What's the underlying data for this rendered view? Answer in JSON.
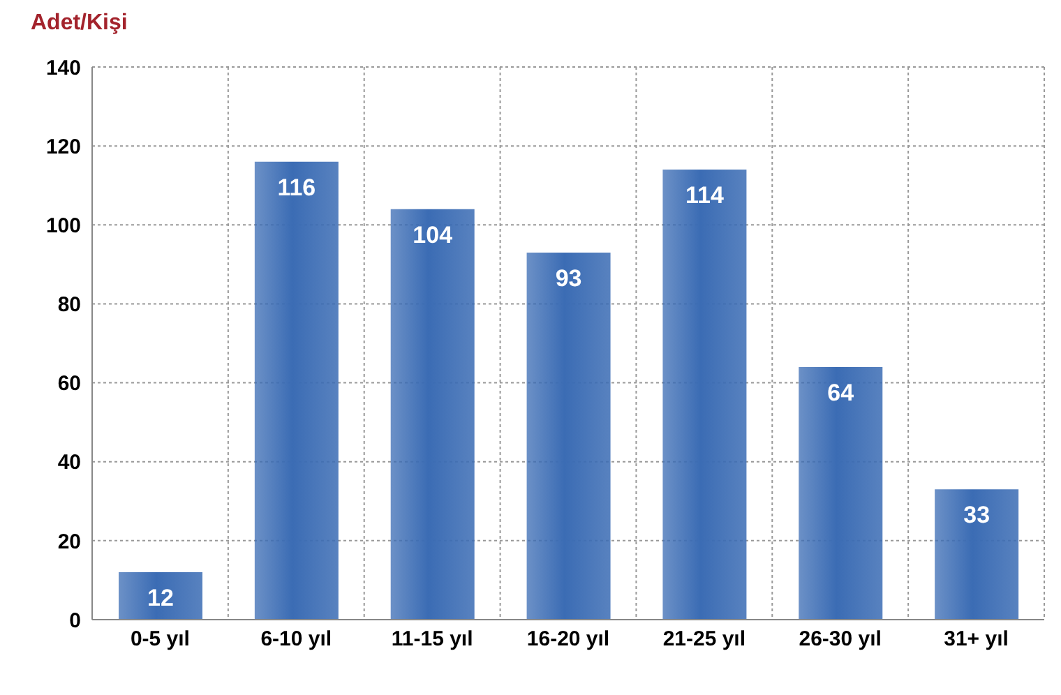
{
  "chart_data": {
    "type": "bar",
    "ylabel": "Adet/Kişi",
    "categories": [
      "0-5 yıl",
      "6-10 yıl",
      "11-15 yıl",
      "16-20 yıl",
      "21-25 yıl",
      "26-30 yıl",
      "31+ yıl"
    ],
    "values": [
      12,
      116,
      104,
      93,
      114,
      64,
      33
    ],
    "color": "#3b6cb4",
    "ylim": [
      0,
      140
    ],
    "yticks": [
      0,
      20,
      40,
      60,
      80,
      100,
      120,
      140
    ],
    "grid": true,
    "data_labels": true
  }
}
